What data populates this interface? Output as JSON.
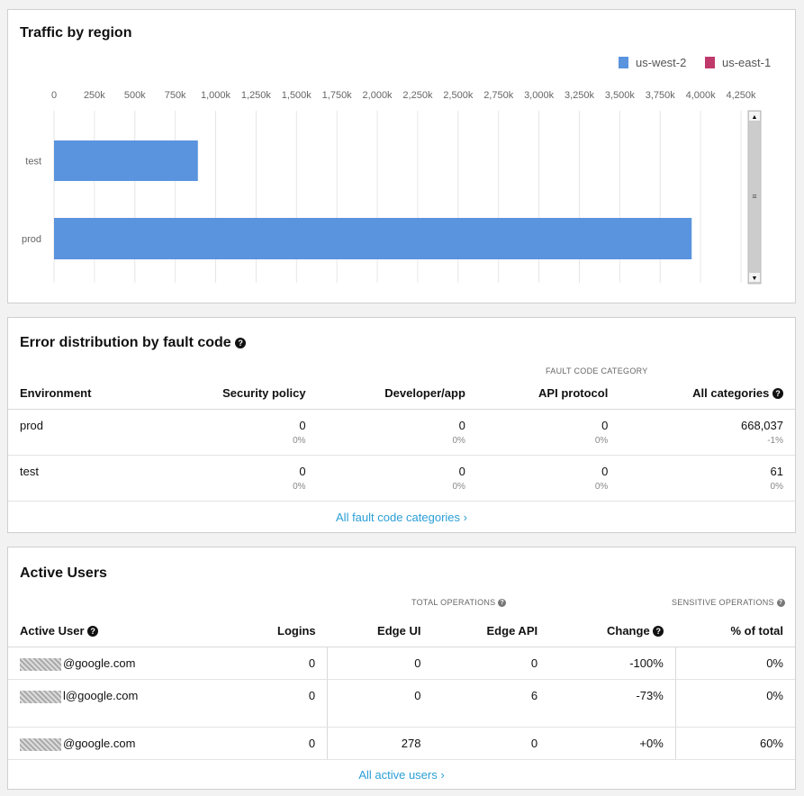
{
  "traffic": {
    "title": "Traffic by region",
    "chart_data": {
      "type": "bar",
      "orientation": "horizontal",
      "categories": [
        "test",
        "prod"
      ],
      "series": [
        {
          "name": "us-west-2",
          "color": "#5a93de",
          "values": [
            890000,
            3945000
          ]
        },
        {
          "name": "us-east-1",
          "color": "#c0396b",
          "values": [
            0,
            0
          ]
        }
      ],
      "xticks": [
        "0",
        "250k",
        "500k",
        "750k",
        "1,000k",
        "1,250k",
        "1,500k",
        "1,750k",
        "2,000k",
        "2,250k",
        "2,500k",
        "2,750k",
        "3,000k",
        "3,250k",
        "3,500k",
        "3,750k",
        "4,000k",
        "4,250k"
      ],
      "xlim": [
        0,
        4250000
      ],
      "grid": true,
      "legend": "top-right"
    }
  },
  "errors": {
    "title": "Error distribution by fault code",
    "category_header": "FAULT CODE CATEGORY",
    "columns": [
      "Environment",
      "Security policy",
      "Developer/app",
      "API protocol",
      "All categories"
    ],
    "rows": [
      {
        "env": "prod",
        "v": [
          "0",
          "0",
          "0",
          "668,037"
        ],
        "p": [
          "0%",
          "0%",
          "0%",
          "-1%"
        ]
      },
      {
        "env": "test",
        "v": [
          "0",
          "0",
          "0",
          "61"
        ],
        "p": [
          "0%",
          "0%",
          "0%",
          "0%"
        ]
      }
    ],
    "link": "All fault code categories ›"
  },
  "users": {
    "title": "Active Users",
    "total_ops": "TOTAL OPERATIONS",
    "sensitive_ops": "SENSITIVE OPERATIONS",
    "columns": [
      "Active User",
      "Logins",
      "Edge UI",
      "Edge API",
      "Change",
      "% of total"
    ],
    "rows": [
      {
        "user": "@google.com",
        "v": [
          "0",
          "0",
          "0",
          "-100%",
          "0%"
        ]
      },
      {
        "user": "l@google.com",
        "v": [
          "0",
          "0",
          "6",
          "-73%",
          "0%"
        ]
      },
      {
        "user": "@google.com",
        "v": [
          "0",
          "278",
          "0",
          "+0%",
          "60%"
        ]
      }
    ],
    "link": "All active users ›"
  }
}
